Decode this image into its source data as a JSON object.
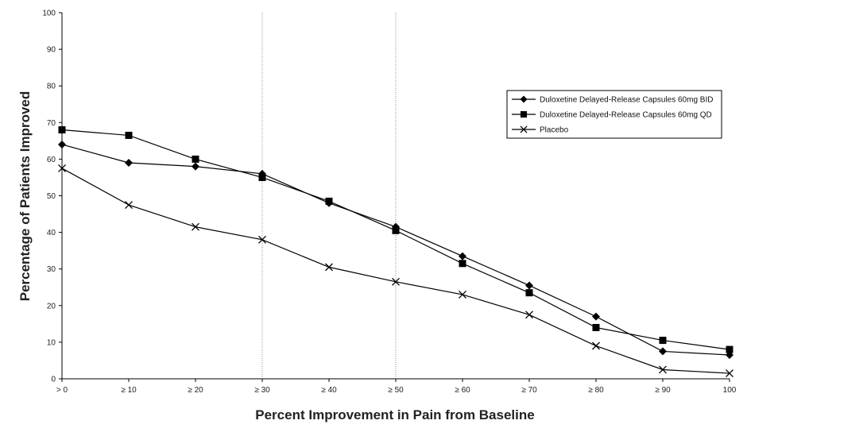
{
  "chart_data": {
    "type": "line",
    "xlabel": "Percent Improvement in Pain from Baseline",
    "ylabel": "Percentage of Patients Improved",
    "categories": [
      "> 0",
      "≥ 10",
      "≥ 20",
      "≥ 30",
      "≥ 40",
      "≥ 50",
      "≥ 60",
      "≥ 70",
      "≥ 80",
      "≥ 90",
      "100"
    ],
    "yticks": [
      "0",
      "10",
      "20",
      "30",
      "40",
      "50",
      "60",
      "70",
      "80",
      "90",
      "100"
    ],
    "ylim": [
      0,
      100
    ],
    "reference_lines_at": [
      "≥ 30",
      "≥ 50"
    ],
    "legend_position": "right, upper-middle",
    "grid": false,
    "series": [
      {
        "name": "Duloxetine Delayed-Release Capsules 60mg BID",
        "marker": "diamond",
        "color": "#000000",
        "values": [
          64,
          59,
          58,
          56,
          48,
          41.5,
          33.5,
          25.5,
          17,
          7.5,
          6.5
        ]
      },
      {
        "name": "Duloxetine Delayed-Release Capsules 60mg QD",
        "marker": "square",
        "color": "#000000",
        "values": [
          68,
          66.5,
          60,
          55,
          48.5,
          40.5,
          31.5,
          23.5,
          14,
          10.5,
          8
        ]
      },
      {
        "name": "Placebo",
        "marker": "x",
        "color": "#000000",
        "values": [
          57.5,
          47.5,
          41.5,
          38,
          30.5,
          26.5,
          23,
          17.5,
          9,
          2.5,
          1.5
        ]
      }
    ]
  }
}
